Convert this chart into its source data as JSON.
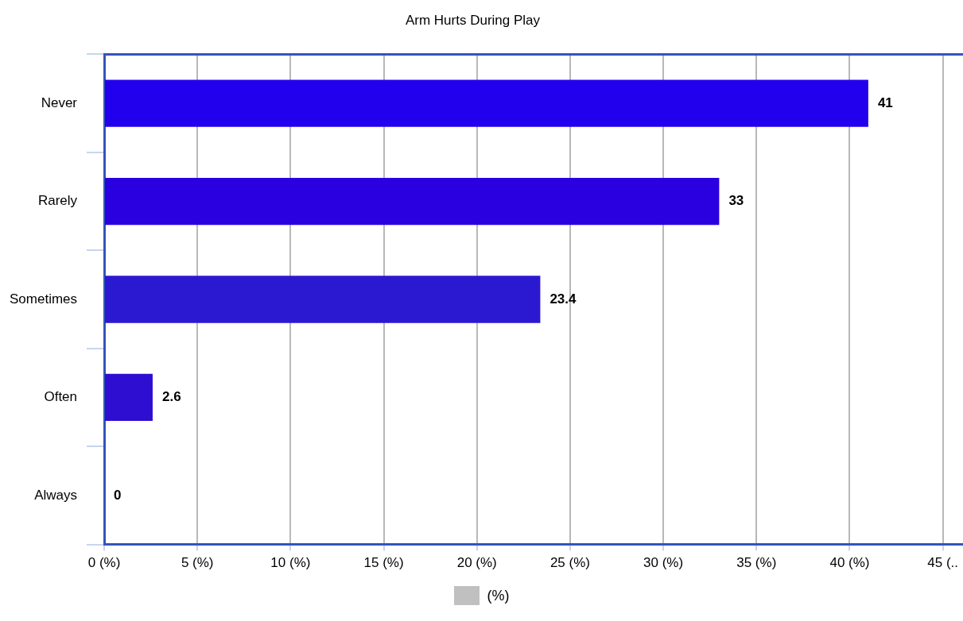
{
  "chart_data": {
    "type": "bar",
    "orientation": "horizontal",
    "title": "Arm Hurts During Play",
    "categories": [
      "Never",
      "Rarely",
      "Sometimes",
      "Often",
      "Always"
    ],
    "series": [
      {
        "name": "(%)",
        "color": "#c0c0c0",
        "colors": [
          "#2200ee",
          "#2a00e0",
          "#2b19d2",
          "#2e0ed0",
          "#3010cc"
        ],
        "values": [
          41,
          33,
          23.4,
          2.6,
          0
        ]
      }
    ],
    "xlim": [
      0,
      45
    ],
    "xticks": [
      {
        "value": 0,
        "label": "0 (%)"
      },
      {
        "value": 5,
        "label": "5 (%)"
      },
      {
        "value": 10,
        "label": "10 (%)"
      },
      {
        "value": 15,
        "label": "15 (%)"
      },
      {
        "value": 20,
        "label": "20 (%)"
      },
      {
        "value": 25,
        "label": "25 (%)"
      },
      {
        "value": 30,
        "label": "30 (%)"
      },
      {
        "value": 35,
        "label": "35 (%)"
      },
      {
        "value": 40,
        "label": "40 (%)"
      },
      {
        "value": 45,
        "label": "45 (.."
      }
    ],
    "grid": "x",
    "legend": "bottom",
    "data_labels": true
  }
}
